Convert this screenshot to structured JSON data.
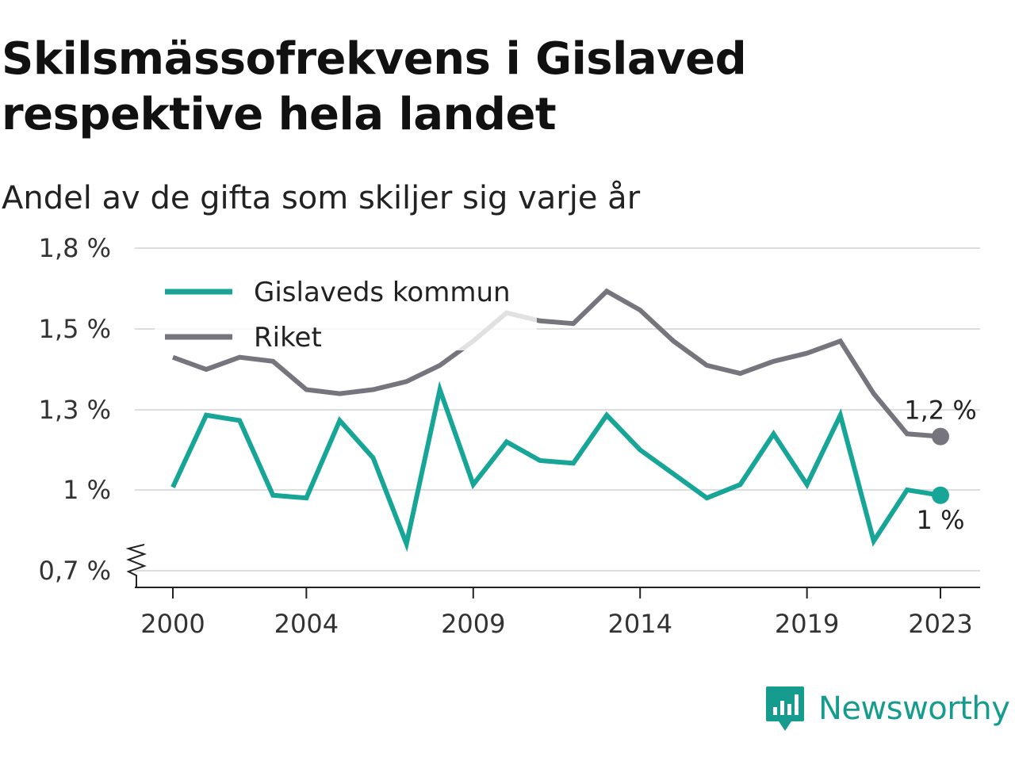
{
  "header": {
    "title": "Skilsmässofrekvens i Gislaved respektive hela landet",
    "subtitle": "Andel av de gifta som skiljer sig varje år"
  },
  "brand": {
    "name": "Newsworthy",
    "color": "#169c8f"
  },
  "chart_data": {
    "type": "line",
    "title": "Skilsmässofrekvens i Gislaved respektive hela landet",
    "subtitle": "Andel av de gifta som skiljer sig varje år",
    "x": [
      2000,
      2001,
      2002,
      2003,
      2004,
      2005,
      2006,
      2007,
      2008,
      2009,
      2010,
      2011,
      2012,
      2013,
      2014,
      2015,
      2016,
      2017,
      2018,
      2019,
      2020,
      2021,
      2022,
      2023
    ],
    "x_ticks": [
      "2000",
      "2004",
      "2009",
      "2014",
      "2019",
      "2023"
    ],
    "x_tick_values": [
      2000,
      2004,
      2009,
      2014,
      2019,
      2023
    ],
    "y_ticks": [
      "0,7 %",
      "1 %",
      "1,3 %",
      "1,5 %",
      "1,8 %"
    ],
    "y_tick_values": [
      0.7,
      1.0,
      1.3,
      1.5,
      1.8
    ],
    "ylim": [
      0.7,
      1.8
    ],
    "grid": true,
    "y_axis_break": true,
    "legend_position": "top-left",
    "series": [
      {
        "name": "Gislaveds kommun",
        "color": "#16a596",
        "end_label": "1 %",
        "values": [
          1.01,
          1.28,
          1.26,
          0.98,
          0.97,
          1.26,
          1.12,
          0.8,
          1.35,
          1.02,
          1.18,
          1.11,
          1.1,
          1.28,
          1.15,
          1.06,
          0.97,
          1.02,
          1.21,
          1.02,
          1.28,
          0.81,
          1.0,
          0.98
        ]
      },
      {
        "name": "Riket",
        "color": "#76757d",
        "end_label": "1,2 %",
        "values": [
          1.43,
          1.4,
          1.43,
          1.42,
          1.35,
          1.34,
          1.35,
          1.37,
          1.41,
          1.47,
          1.56,
          1.53,
          1.52,
          1.64,
          1.57,
          1.47,
          1.41,
          1.39,
          1.42,
          1.44,
          1.47,
          1.34,
          1.21,
          1.2
        ]
      }
    ]
  }
}
